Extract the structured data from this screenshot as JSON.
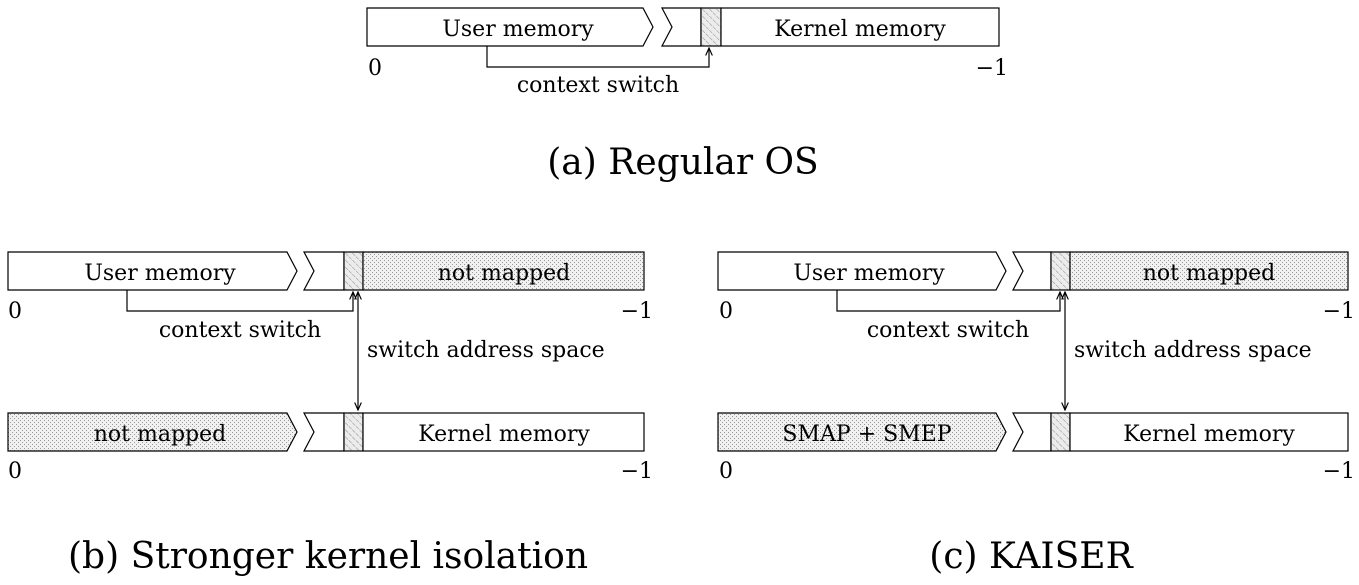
{
  "panel_a": {
    "top": {
      "left_region": "User memory",
      "right_region": "Kernel memory",
      "addr_start": "0",
      "addr_end": "−1"
    },
    "context_switch": "context switch",
    "caption": "(a) Regular OS"
  },
  "panel_b": {
    "top": {
      "left_region": "User memory",
      "right_region": "not mapped",
      "addr_start": "0",
      "addr_end": "−1"
    },
    "context_switch": "context switch",
    "switch_address_space": "switch address space",
    "bottom": {
      "left_region": "not mapped",
      "right_region": "Kernel memory",
      "addr_start": "0",
      "addr_end": "−1"
    },
    "caption": "(b) Stronger kernel isolation"
  },
  "panel_c": {
    "top": {
      "left_region": "User memory",
      "right_region": "not mapped",
      "addr_start": "0",
      "addr_end": "−1"
    },
    "context_switch": "context switch",
    "switch_address_space": "switch address space",
    "bottom": {
      "left_region": "SMAP + SMEP",
      "right_region": "Kernel memory",
      "addr_start": "0",
      "addr_end": "−1"
    },
    "caption": "(c) KAISER"
  },
  "fills": {
    "not_mapped": "dotted-gray",
    "switch_page": "hatched-gray"
  }
}
